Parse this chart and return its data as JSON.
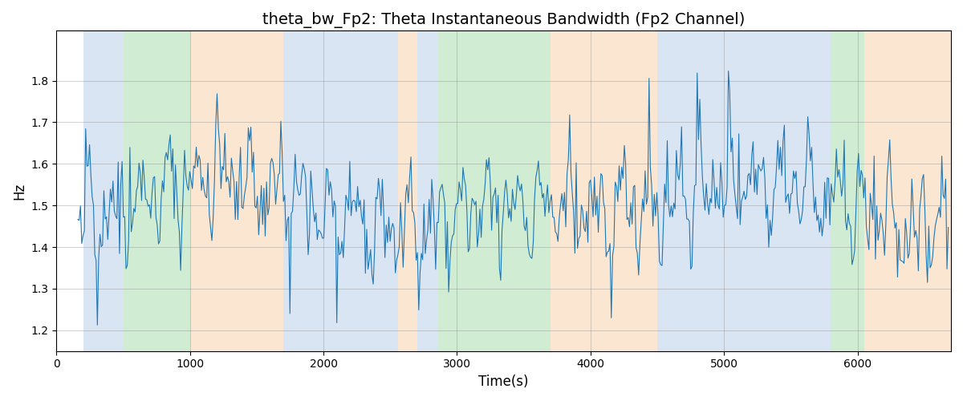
{
  "title": "theta_bw_Fp2: Theta Instantaneous Bandwidth (Fp2 Channel)",
  "xlabel": "Time(s)",
  "ylabel": "Hz",
  "xlim": [
    0,
    6700
  ],
  "ylim": [
    1.15,
    1.92
  ],
  "line_color": "#1f77b4",
  "line_width": 0.8,
  "grid": true,
  "background_regions": [
    {
      "xmin": 200,
      "xmax": 500,
      "color": "#aec6e8",
      "alpha": 0.45
    },
    {
      "xmin": 500,
      "xmax": 1000,
      "color": "#98d8a0",
      "alpha": 0.45
    },
    {
      "xmin": 1000,
      "xmax": 1700,
      "color": "#f7c99a",
      "alpha": 0.45
    },
    {
      "xmin": 1700,
      "xmax": 2560,
      "color": "#aec6e8",
      "alpha": 0.45
    },
    {
      "xmin": 2560,
      "xmax": 2700,
      "color": "#f7c99a",
      "alpha": 0.45
    },
    {
      "xmin": 2700,
      "xmax": 2860,
      "color": "#aec6e8",
      "alpha": 0.45
    },
    {
      "xmin": 2860,
      "xmax": 3700,
      "color": "#98d8a0",
      "alpha": 0.45
    },
    {
      "xmin": 3700,
      "xmax": 4500,
      "color": "#f7c99a",
      "alpha": 0.45
    },
    {
      "xmin": 4500,
      "xmax": 5800,
      "color": "#aec6e8",
      "alpha": 0.45
    },
    {
      "xmin": 5800,
      "xmax": 6050,
      "color": "#98d8a0",
      "alpha": 0.45
    },
    {
      "xmin": 6050,
      "xmax": 6700,
      "color": "#f7c99a",
      "alpha": 0.45
    }
  ],
  "seed": 42,
  "n_points": 670,
  "t_start": 160,
  "t_end": 6680,
  "base_value": 1.5,
  "title_fontsize": 14,
  "yticks": [
    1.2,
    1.3,
    1.4,
    1.5,
    1.6,
    1.7,
    1.8
  ]
}
